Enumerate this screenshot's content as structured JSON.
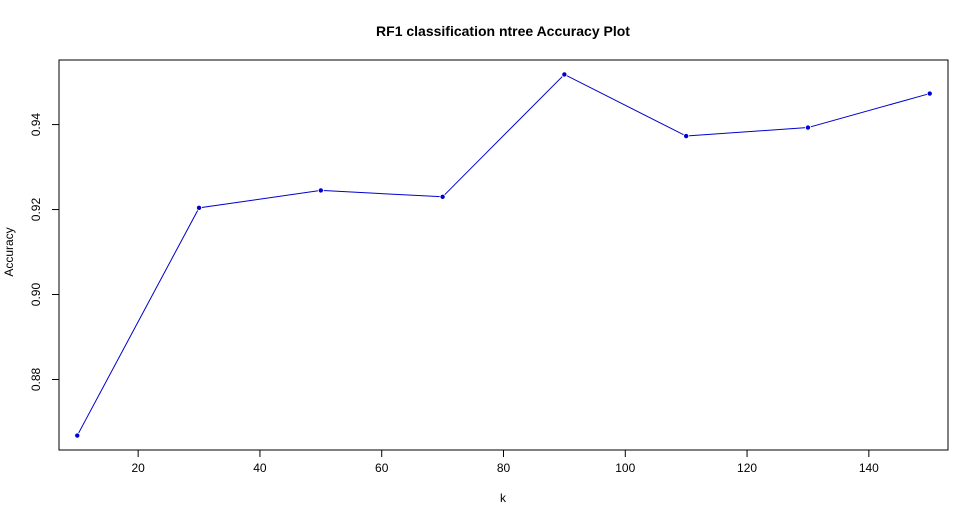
{
  "chart_data": {
    "type": "line",
    "title": "RF1 classification ntree Accuracy Plot",
    "xlabel": "k",
    "ylabel": "Accuracy",
    "xlim": [
      7,
      153
    ],
    "ylim": [
      0.8634,
      0.9552
    ],
    "xticks": [
      20,
      40,
      60,
      80,
      100,
      120,
      140
    ],
    "yticks": [
      0.88,
      0.9,
      0.92,
      0.94
    ],
    "series": [
      {
        "color": "#0000cc",
        "x": [
          10,
          30,
          50,
          70,
          90,
          110,
          130,
          150
        ],
        "y": [
          0.8668,
          0.9204,
          0.9245,
          0.923,
          0.9518,
          0.9373,
          0.9393,
          0.9473
        ]
      }
    ],
    "grid": false,
    "legend": "none"
  }
}
